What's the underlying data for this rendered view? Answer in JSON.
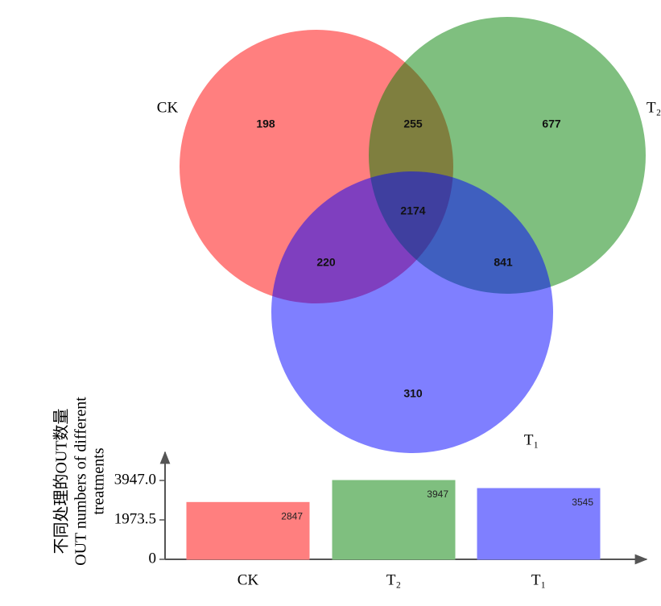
{
  "chart_data": [
    {
      "type": "venn",
      "sets": [
        {
          "name": "CK",
          "color": "#ff0000"
        },
        {
          "name": "T₂",
          "color": "#008000"
        },
        {
          "name": "T₁",
          "color": "#0000ff"
        }
      ],
      "values": [
        198,
        255,
        677,
        2174,
        220,
        841,
        310
      ]
    },
    {
      "type": "bar",
      "y_label": [
        "不同处理的OUT数量",
        "OUT numbers of different",
        "treatments"
      ],
      "categories": [
        "CK",
        "T₂",
        "T₁"
      ],
      "values": [
        2847,
        3947,
        3545
      ],
      "colors": [
        "#ff7f7f",
        "#7fbf7f",
        "#7f7fff"
      ],
      "ylim": [
        0,
        5236
      ],
      "yticks": [
        0,
        1973.5,
        {
          "value": 3947,
          "label": "3947.0"
        }
      ]
    }
  ]
}
